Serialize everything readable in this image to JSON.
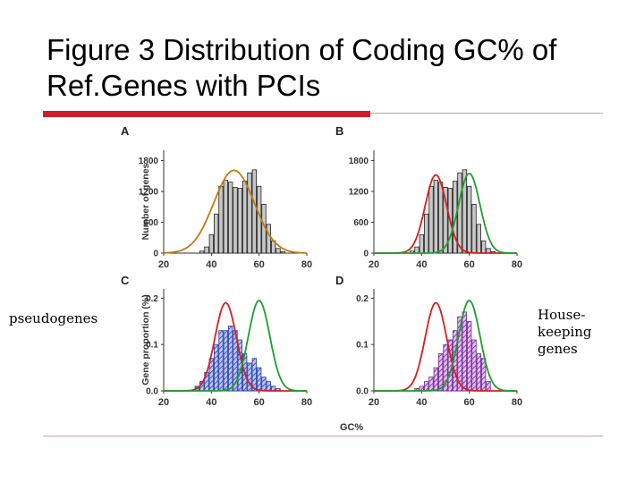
{
  "slide": {
    "title": "Figure 3 Distribution of Coding GC% of Ref.Genes with PCIs",
    "left_label": "pseudogenes",
    "right_label": "House-\nkeeping\ngenes",
    "colors": {
      "accent_red": "#cc1f2a",
      "rule": "#c9a3a3"
    }
  },
  "chart_data": [
    {
      "panel": "A",
      "type": "bar",
      "ylabel": "Number of genes",
      "xlabel": "",
      "xlim": [
        20,
        80
      ],
      "ylim": [
        0,
        2000
      ],
      "xticks": [
        "20",
        "40",
        "60",
        "80"
      ],
      "yticks": [
        "0",
        "600",
        "1200",
        "1800"
      ],
      "bar_width": 2,
      "x": [
        36,
        38,
        40,
        42,
        44,
        46,
        48,
        50,
        52,
        54,
        56,
        58,
        60,
        62,
        64,
        66,
        68,
        70
      ],
      "values": [
        40,
        120,
        360,
        760,
        1300,
        1420,
        1380,
        1280,
        1260,
        1400,
        1560,
        1620,
        1300,
        950,
        560,
        240,
        90,
        30
      ],
      "bar_style": "gray",
      "curves": [
        {
          "color": "#c07a10",
          "mean": 49.5,
          "sd": 8.5,
          "peak": 1610
        }
      ]
    },
    {
      "panel": "B",
      "type": "bar",
      "ylabel": "",
      "xlabel": "",
      "xlim": [
        20,
        80
      ],
      "ylim": [
        0,
        2000
      ],
      "xticks": [
        "20",
        "40",
        "60",
        "80"
      ],
      "yticks": [
        "0",
        "600",
        "1200",
        "1800"
      ],
      "bar_width": 2,
      "x": [
        36,
        38,
        40,
        42,
        44,
        46,
        48,
        50,
        52,
        54,
        56,
        58,
        60,
        62,
        64,
        66,
        68,
        70
      ],
      "values": [
        40,
        120,
        360,
        760,
        1300,
        1420,
        1380,
        1280,
        1260,
        1400,
        1560,
        1620,
        1300,
        950,
        560,
        240,
        90,
        30
      ],
      "bar_style": "gray",
      "curves": [
        {
          "color": "#d42020",
          "mean": 46,
          "sd": 4.5,
          "peak": 1520
        },
        {
          "color": "#1e9e2e",
          "mean": 60,
          "sd": 4.5,
          "peak": 1550
        }
      ]
    },
    {
      "panel": "C",
      "type": "bar",
      "ylabel": "Gene proportion (%)",
      "xlabel": "",
      "xlim": [
        20,
        80
      ],
      "ylim": [
        0,
        0.22
      ],
      "xticks": [
        "20",
        "40",
        "60",
        "80"
      ],
      "yticks": [
        "0.0",
        "0.1",
        "0.2"
      ],
      "bar_width": 2,
      "x": [
        34,
        36,
        38,
        40,
        42,
        44,
        46,
        48,
        50,
        52,
        54,
        56,
        58,
        60,
        62,
        64,
        66,
        68
      ],
      "values": [
        0.01,
        0.02,
        0.04,
        0.07,
        0.1,
        0.13,
        0.13,
        0.14,
        0.13,
        0.11,
        0.08,
        0.06,
        0.07,
        0.05,
        0.03,
        0.02,
        0.01,
        0.005
      ],
      "bar_style": "blue",
      "curves": [
        {
          "color": "#d42020",
          "mean": 46,
          "sd": 4.5,
          "peak": 0.19
        },
        {
          "color": "#1e9e2e",
          "mean": 60,
          "sd": 4.5,
          "peak": 0.195
        }
      ]
    },
    {
      "panel": "D",
      "type": "bar",
      "ylabel": "",
      "xlabel": "GC%",
      "xlim": [
        20,
        80
      ],
      "ylim": [
        0,
        0.22
      ],
      "xticks": [
        "20",
        "40",
        "60",
        "80"
      ],
      "yticks": [
        "0.0",
        "0.1",
        "0.2"
      ],
      "bar_width": 2,
      "x": [
        38,
        40,
        42,
        44,
        46,
        48,
        50,
        52,
        54,
        56,
        58,
        60,
        62,
        64,
        66,
        68
      ],
      "values": [
        0.005,
        0.01,
        0.02,
        0.03,
        0.05,
        0.08,
        0.1,
        0.11,
        0.13,
        0.16,
        0.17,
        0.15,
        0.11,
        0.08,
        0.07,
        0.02
      ],
      "bar_style": "purple",
      "curves": [
        {
          "color": "#d42020",
          "mean": 46,
          "sd": 4.5,
          "peak": 0.19
        },
        {
          "color": "#1e9e2e",
          "mean": 60,
          "sd": 4.5,
          "peak": 0.195
        }
      ]
    }
  ]
}
